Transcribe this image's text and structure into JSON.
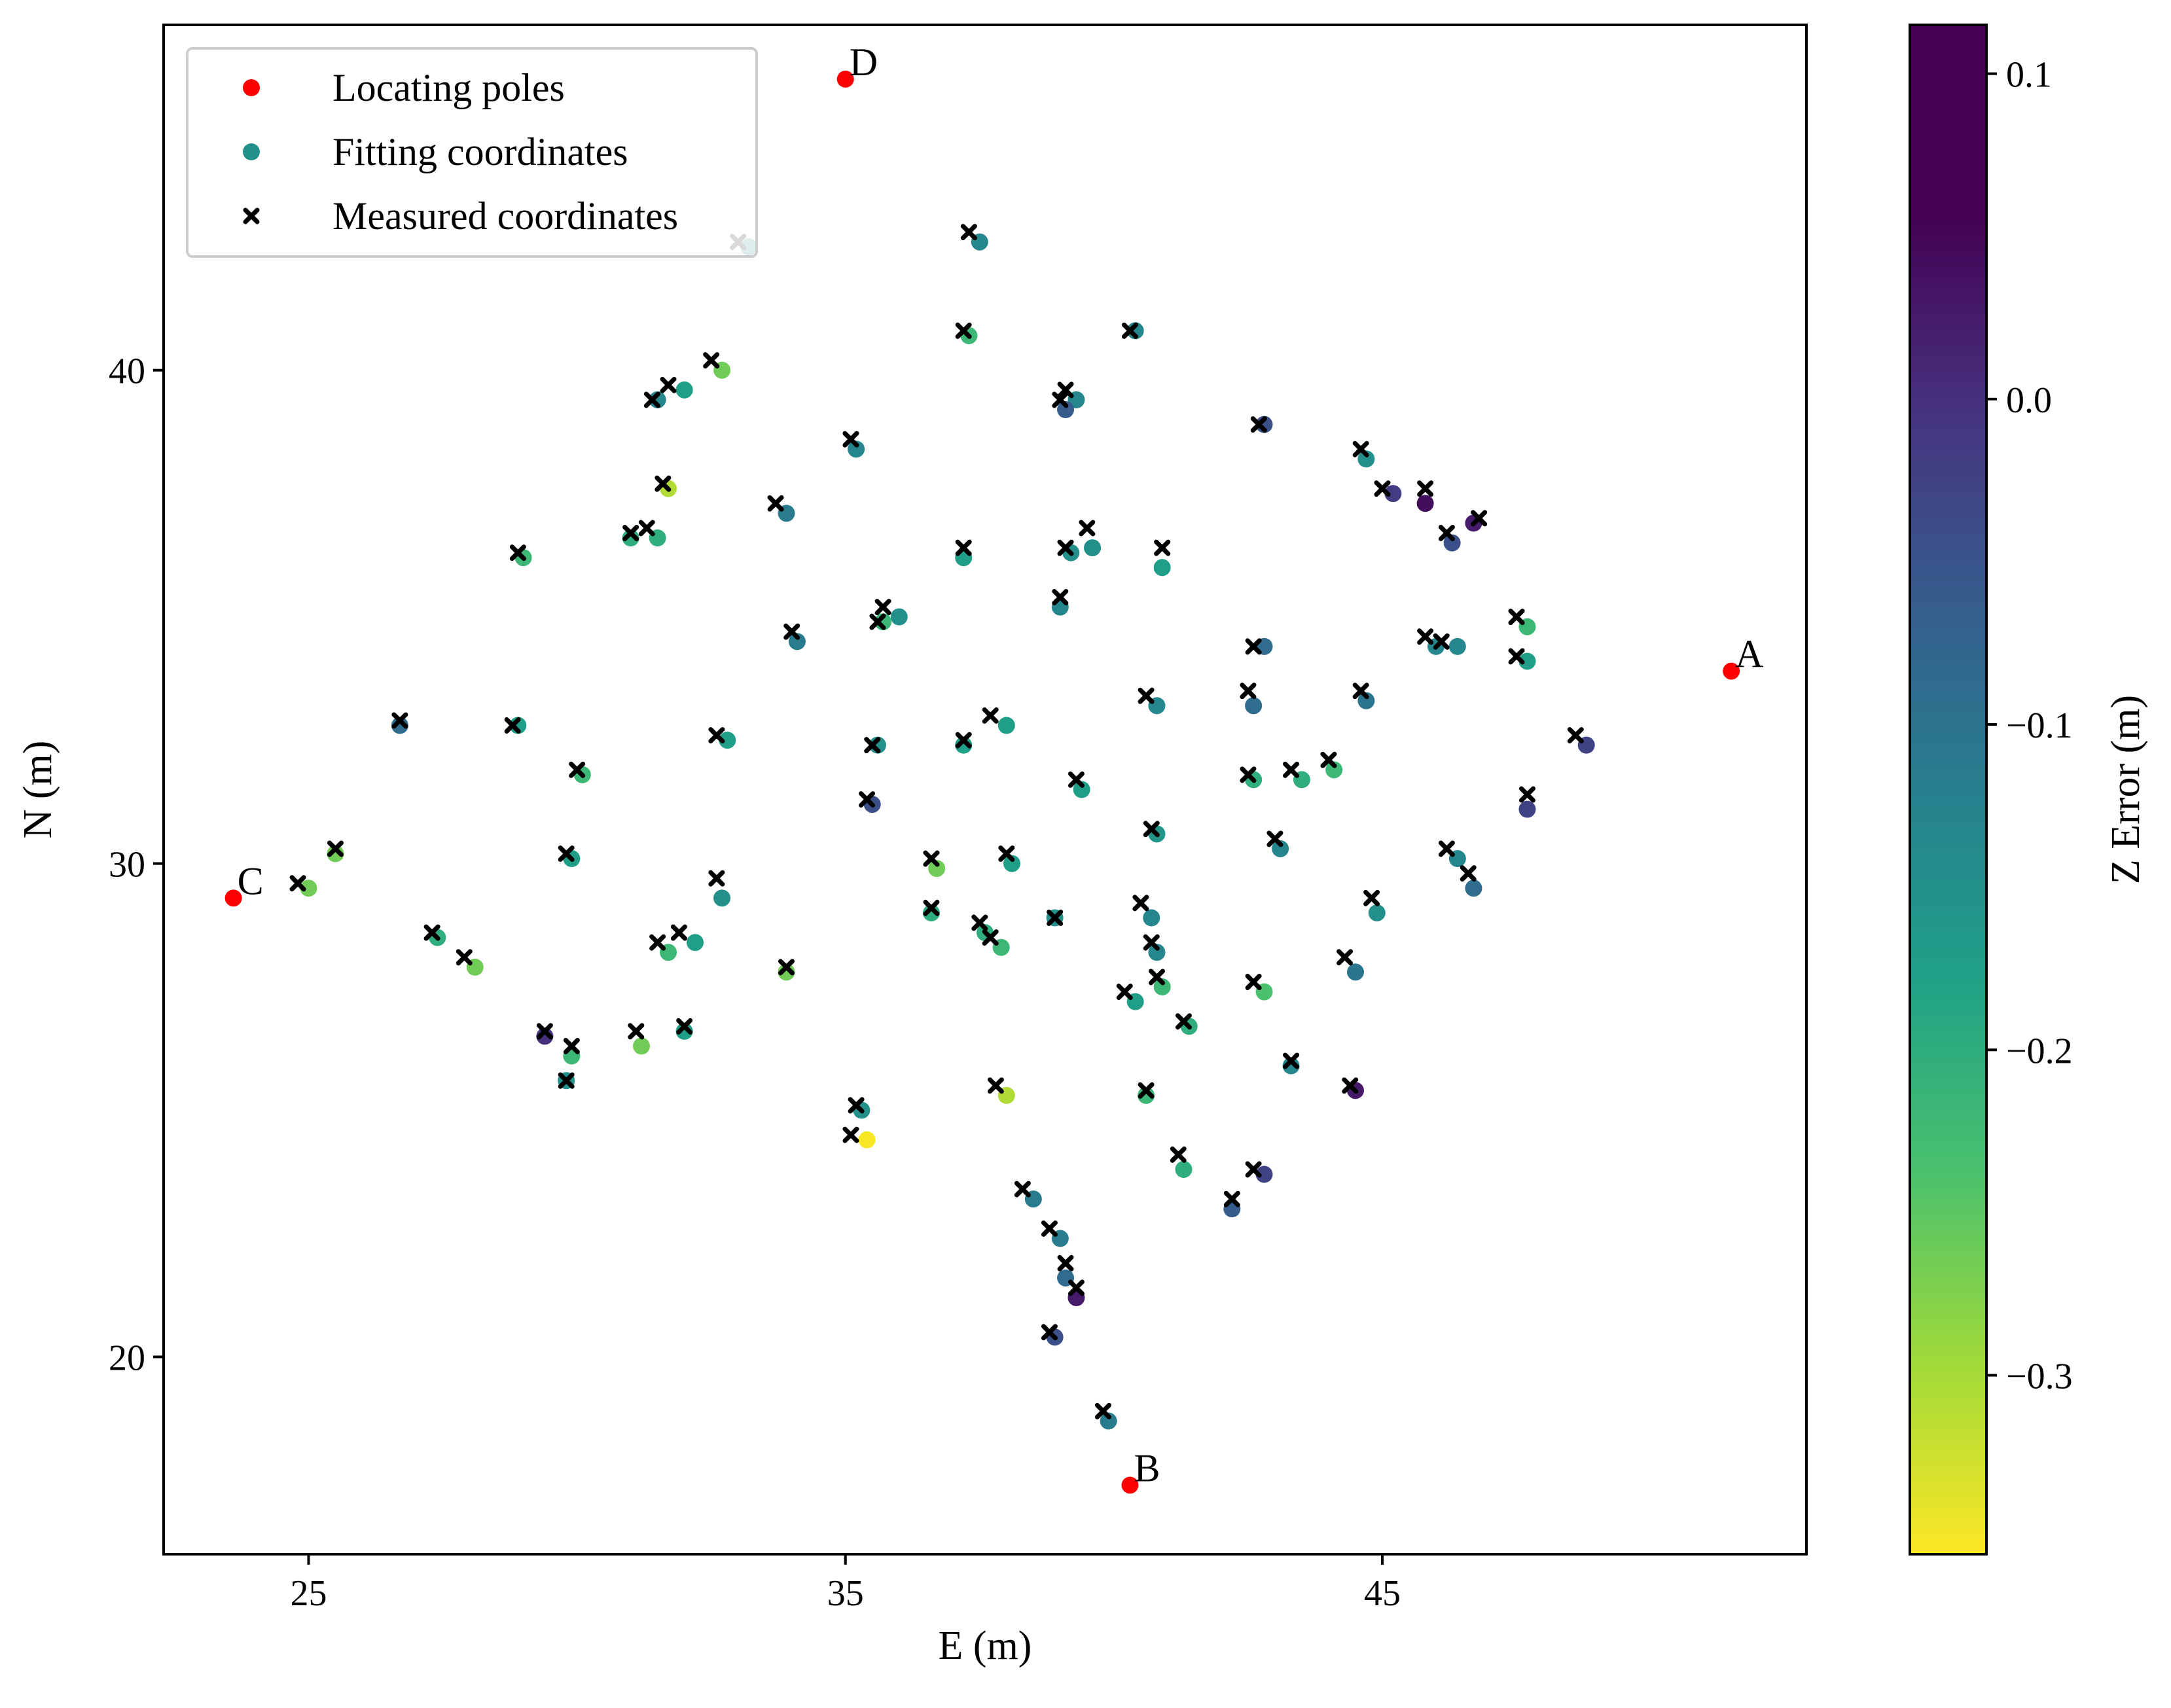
{
  "chart_data": {
    "type": "scatter",
    "xlabel": "E (m)",
    "ylabel": "N (m)",
    "xlim": [
      22.3,
      52.9
    ],
    "ylim": [
      16.0,
      47.0
    ],
    "x_ticks": [
      25,
      35,
      45
    ],
    "y_ticks": [
      20,
      30,
      40
    ],
    "grid": false,
    "legend": {
      "placement": "top-left",
      "entries": [
        {
          "name": "Locating poles",
          "marker": "dot",
          "color": "#ff0000"
        },
        {
          "name": "Fitting coordinates",
          "marker": "dot",
          "color": "#21918c"
        },
        {
          "name": "Measured coordinates",
          "marker": "x",
          "color": "#000000"
        }
      ]
    },
    "colorbar": {
      "label": "Z Error (m)",
      "range": [
        -0.355,
        0.115
      ],
      "ticks": [
        0.1,
        0.0,
        -0.1,
        -0.2,
        -0.3
      ],
      "tick_labels": [
        "0.1",
        "0.0",
        "−0.1",
        "−0.2",
        "−0.3"
      ],
      "colormap": "viridis",
      "orientation": "vertical",
      "placement": "right"
    },
    "locating_poles": [
      {
        "label": "A",
        "x": 51.5,
        "y": 33.9
      },
      {
        "label": "B",
        "x": 40.3,
        "y": 17.4
      },
      {
        "label": "C",
        "x": 23.6,
        "y": 29.3
      },
      {
        "label": "D",
        "x": 35.0,
        "y": 45.9
      }
    ],
    "points": [
      {
        "mx": 33.0,
        "my": 42.6,
        "fx": 33.2,
        "fy": 42.5,
        "z": -0.1
      },
      {
        "mx": 37.3,
        "my": 42.8,
        "fx": 37.5,
        "fy": 42.6,
        "z": -0.1
      },
      {
        "mx": 37.2,
        "my": 40.8,
        "fx": 37.3,
        "fy": 40.7,
        "z": -0.2
      },
      {
        "mx": 40.3,
        "my": 40.8,
        "fx": 40.4,
        "fy": 40.8,
        "z": -0.1
      },
      {
        "mx": 32.5,
        "my": 40.2,
        "fx": 32.7,
        "fy": 40.0,
        "z": -0.25
      },
      {
        "mx": 31.7,
        "my": 39.7,
        "fx": 32.0,
        "fy": 39.6,
        "z": -0.15
      },
      {
        "mx": 31.4,
        "my": 39.4,
        "fx": 31.5,
        "fy": 39.4,
        "z": -0.1
      },
      {
        "mx": 39.1,
        "my": 39.6,
        "fx": 39.3,
        "fy": 39.4,
        "z": -0.1
      },
      {
        "mx": 39.0,
        "my": 39.4,
        "fx": 39.1,
        "fy": 39.2,
        "z": -0.02
      },
      {
        "mx": 42.7,
        "my": 38.9,
        "fx": 42.8,
        "fy": 38.9,
        "z": 0.0
      },
      {
        "mx": 35.1,
        "my": 38.6,
        "fx": 35.2,
        "fy": 38.4,
        "z": -0.1
      },
      {
        "mx": 44.6,
        "my": 38.4,
        "fx": 44.7,
        "fy": 38.2,
        "z": -0.12
      },
      {
        "mx": 31.6,
        "my": 37.7,
        "fx": 31.7,
        "fy": 37.6,
        "z": -0.3
      },
      {
        "mx": 45.0,
        "my": 37.6,
        "fx": 45.2,
        "fy": 37.5,
        "z": 0.03
      },
      {
        "mx": 45.8,
        "my": 37.6,
        "fx": 45.8,
        "fy": 37.3,
        "z": 0.1
      },
      {
        "mx": 33.7,
        "my": 37.3,
        "fx": 33.9,
        "fy": 37.1,
        "z": -0.08
      },
      {
        "mx": 46.8,
        "my": 37.0,
        "fx": 46.7,
        "fy": 36.9,
        "z": 0.08
      },
      {
        "mx": 46.2,
        "my": 36.7,
        "fx": 46.3,
        "fy": 36.5,
        "z": 0.0
      },
      {
        "mx": 31.3,
        "my": 36.8,
        "fx": 31.5,
        "fy": 36.6,
        "z": -0.18
      },
      {
        "mx": 31.0,
        "my": 36.7,
        "fx": 31.0,
        "fy": 36.6,
        "z": -0.18
      },
      {
        "mx": 39.5,
        "my": 36.8,
        "fx": 39.6,
        "fy": 36.4,
        "z": -0.12
      },
      {
        "mx": 28.9,
        "my": 36.3,
        "fx": 29.0,
        "fy": 36.2,
        "z": -0.2
      },
      {
        "mx": 37.2,
        "my": 36.4,
        "fx": 37.2,
        "fy": 36.2,
        "z": -0.15
      },
      {
        "mx": 39.1,
        "my": 36.4,
        "fx": 39.2,
        "fy": 36.3,
        "z": -0.12
      },
      {
        "mx": 40.9,
        "my": 36.4,
        "fx": 40.9,
        "fy": 36.0,
        "z": -0.15
      },
      {
        "mx": 35.7,
        "my": 35.2,
        "fx": 36.0,
        "fy": 35.0,
        "z": -0.12
      },
      {
        "mx": 35.6,
        "my": 34.9,
        "fx": 35.7,
        "fy": 34.9,
        "z": -0.2
      },
      {
        "mx": 39.0,
        "my": 35.4,
        "fx": 39.0,
        "fy": 35.2,
        "z": -0.1
      },
      {
        "mx": 34.0,
        "my": 34.7,
        "fx": 34.1,
        "fy": 34.5,
        "z": -0.08
      },
      {
        "mx": 42.6,
        "my": 34.4,
        "fx": 42.8,
        "fy": 34.4,
        "z": -0.05
      },
      {
        "mx": 45.8,
        "my": 34.6,
        "fx": 46.0,
        "fy": 34.4,
        "z": -0.1
      },
      {
        "mx": 46.1,
        "my": 34.5,
        "fx": 46.4,
        "fy": 34.4,
        "z": -0.1
      },
      {
        "mx": 47.5,
        "my": 35.0,
        "fx": 47.7,
        "fy": 34.8,
        "z": -0.2
      },
      {
        "mx": 47.5,
        "my": 34.2,
        "fx": 47.7,
        "fy": 34.1,
        "z": -0.15
      },
      {
        "mx": 40.6,
        "my": 33.4,
        "fx": 40.8,
        "fy": 33.2,
        "z": -0.1
      },
      {
        "mx": 42.5,
        "my": 33.5,
        "fx": 42.6,
        "fy": 33.2,
        "z": -0.05
      },
      {
        "mx": 44.6,
        "my": 33.5,
        "fx": 44.7,
        "fy": 33.3,
        "z": -0.07
      },
      {
        "mx": 26.7,
        "my": 32.9,
        "fx": 26.7,
        "fy": 32.8,
        "z": -0.05
      },
      {
        "mx": 28.8,
        "my": 32.8,
        "fx": 28.9,
        "fy": 32.8,
        "z": -0.15
      },
      {
        "mx": 32.6,
        "my": 32.6,
        "fx": 32.8,
        "fy": 32.5,
        "z": -0.15
      },
      {
        "mx": 37.7,
        "my": 33.0,
        "fx": 38.0,
        "fy": 32.8,
        "z": -0.15
      },
      {
        "mx": 35.5,
        "my": 32.4,
        "fx": 35.6,
        "fy": 32.4,
        "z": -0.12
      },
      {
        "mx": 37.2,
        "my": 32.5,
        "fx": 37.2,
        "fy": 32.4,
        "z": -0.15
      },
      {
        "mx": 48.6,
        "my": 32.6,
        "fx": 48.8,
        "fy": 32.4,
        "z": 0.02
      },
      {
        "mx": 30.0,
        "my": 31.9,
        "fx": 30.1,
        "fy": 31.8,
        "z": -0.2
      },
      {
        "mx": 42.5,
        "my": 31.8,
        "fx": 42.6,
        "fy": 31.7,
        "z": -0.18
      },
      {
        "mx": 43.3,
        "my": 31.9,
        "fx": 43.5,
        "fy": 31.7,
        "z": -0.18
      },
      {
        "mx": 44.0,
        "my": 32.1,
        "fx": 44.1,
        "fy": 31.9,
        "z": -0.2
      },
      {
        "mx": 39.3,
        "my": 31.7,
        "fx": 39.4,
        "fy": 31.5,
        "z": -0.15
      },
      {
        "mx": 47.7,
        "my": 31.4,
        "fx": 47.7,
        "fy": 31.1,
        "z": 0.02
      },
      {
        "mx": 35.4,
        "my": 31.3,
        "fx": 35.5,
        "fy": 31.2,
        "z": 0.0
      },
      {
        "mx": 25.5,
        "my": 30.3,
        "fx": 25.5,
        "fy": 30.2,
        "z": -0.25
      },
      {
        "mx": 40.7,
        "my": 30.7,
        "fx": 40.8,
        "fy": 30.6,
        "z": -0.13
      },
      {
        "mx": 43.0,
        "my": 30.5,
        "fx": 43.1,
        "fy": 30.3,
        "z": -0.1
      },
      {
        "mx": 29.8,
        "my": 30.2,
        "fx": 29.9,
        "fy": 30.1,
        "z": -0.15
      },
      {
        "mx": 36.6,
        "my": 30.1,
        "fx": 36.7,
        "fy": 29.9,
        "z": -0.25
      },
      {
        "mx": 38.0,
        "my": 30.2,
        "fx": 38.1,
        "fy": 30.0,
        "z": -0.15
      },
      {
        "mx": 46.2,
        "my": 30.3,
        "fx": 46.4,
        "fy": 30.1,
        "z": -0.1
      },
      {
        "mx": 46.6,
        "my": 29.8,
        "fx": 46.7,
        "fy": 29.5,
        "z": -0.05
      },
      {
        "mx": 24.8,
        "my": 29.6,
        "fx": 25.0,
        "fy": 29.5,
        "z": -0.25
      },
      {
        "mx": 32.6,
        "my": 29.7,
        "fx": 32.7,
        "fy": 29.3,
        "z": -0.12
      },
      {
        "mx": 44.8,
        "my": 29.3,
        "fx": 44.9,
        "fy": 29.0,
        "z": -0.12
      },
      {
        "mx": 36.6,
        "my": 29.1,
        "fx": 36.6,
        "fy": 29.0,
        "z": -0.18
      },
      {
        "mx": 40.5,
        "my": 29.2,
        "fx": 40.7,
        "fy": 28.9,
        "z": -0.1
      },
      {
        "mx": 38.9,
        "my": 28.9,
        "fx": 38.9,
        "fy": 28.9,
        "z": -0.12
      },
      {
        "mx": 37.5,
        "my": 28.8,
        "fx": 37.6,
        "fy": 28.6,
        "z": -0.18
      },
      {
        "mx": 27.3,
        "my": 28.6,
        "fx": 27.4,
        "fy": 28.5,
        "z": -0.18
      },
      {
        "mx": 31.5,
        "my": 28.4,
        "fx": 31.7,
        "fy": 28.2,
        "z": -0.2
      },
      {
        "mx": 31.9,
        "my": 28.6,
        "fx": 32.2,
        "fy": 28.4,
        "z": -0.15
      },
      {
        "mx": 37.7,
        "my": 28.5,
        "fx": 37.9,
        "fy": 28.3,
        "z": -0.2
      },
      {
        "mx": 40.7,
        "my": 28.4,
        "fx": 40.8,
        "fy": 28.2,
        "z": -0.1
      },
      {
        "mx": 27.9,
        "my": 28.1,
        "fx": 28.1,
        "fy": 27.9,
        "z": -0.25
      },
      {
        "mx": 33.9,
        "my": 27.9,
        "fx": 33.9,
        "fy": 27.8,
        "z": -0.25
      },
      {
        "mx": 44.3,
        "my": 28.1,
        "fx": 44.5,
        "fy": 27.8,
        "z": -0.07
      },
      {
        "mx": 40.8,
        "my": 27.7,
        "fx": 40.9,
        "fy": 27.5,
        "z": -0.2
      },
      {
        "mx": 42.6,
        "my": 27.6,
        "fx": 42.8,
        "fy": 27.4,
        "z": -0.22
      },
      {
        "mx": 40.2,
        "my": 27.4,
        "fx": 40.4,
        "fy": 27.2,
        "z": -0.15
      },
      {
        "mx": 41.3,
        "my": 26.8,
        "fx": 41.4,
        "fy": 26.7,
        "z": -0.18
      },
      {
        "mx": 29.4,
        "my": 26.6,
        "fx": 29.4,
        "fy": 26.5,
        "z": 0.05
      },
      {
        "mx": 31.1,
        "my": 26.6,
        "fx": 31.2,
        "fy": 26.3,
        "z": -0.25
      },
      {
        "mx": 32.0,
        "my": 26.7,
        "fx": 32.0,
        "fy": 26.6,
        "z": -0.15
      },
      {
        "mx": 29.9,
        "my": 26.3,
        "fx": 29.9,
        "fy": 26.1,
        "z": -0.2
      },
      {
        "mx": 43.3,
        "my": 26.0,
        "fx": 43.3,
        "fy": 25.9,
        "z": -0.1
      },
      {
        "mx": 29.8,
        "my": 25.6,
        "fx": 29.8,
        "fy": 25.6,
        "z": -0.12
      },
      {
        "mx": 37.8,
        "my": 25.5,
        "fx": 38.0,
        "fy": 25.3,
        "z": -0.3
      },
      {
        "mx": 40.6,
        "my": 25.4,
        "fx": 40.6,
        "fy": 25.3,
        "z": -0.2
      },
      {
        "mx": 44.4,
        "my": 25.5,
        "fx": 44.5,
        "fy": 25.4,
        "z": 0.08
      },
      {
        "mx": 35.2,
        "my": 25.1,
        "fx": 35.3,
        "fy": 25.0,
        "z": -0.12
      },
      {
        "mx": 35.1,
        "my": 24.5,
        "fx": 35.4,
        "fy": 24.4,
        "z": -0.35
      },
      {
        "mx": 41.2,
        "my": 24.1,
        "fx": 41.3,
        "fy": 23.8,
        "z": -0.18
      },
      {
        "mx": 42.6,
        "my": 23.8,
        "fx": 42.8,
        "fy": 23.7,
        "z": 0.02
      },
      {
        "mx": 38.3,
        "my": 23.4,
        "fx": 38.5,
        "fy": 23.2,
        "z": -0.08
      },
      {
        "mx": 42.2,
        "my": 23.2,
        "fx": 42.2,
        "fy": 23.0,
        "z": -0.02
      },
      {
        "mx": 38.8,
        "my": 22.6,
        "fx": 39.0,
        "fy": 22.4,
        "z": -0.08
      },
      {
        "mx": 39.1,
        "my": 21.9,
        "fx": 39.1,
        "fy": 21.6,
        "z": -0.05
      },
      {
        "mx": 39.3,
        "my": 21.4,
        "fx": 39.3,
        "fy": 21.2,
        "z": 0.08
      },
      {
        "mx": 38.8,
        "my": 20.5,
        "fx": 38.9,
        "fy": 20.4,
        "z": 0.0
      },
      {
        "mx": 39.8,
        "my": 18.9,
        "fx": 39.9,
        "fy": 18.7,
        "z": -0.08
      }
    ]
  }
}
